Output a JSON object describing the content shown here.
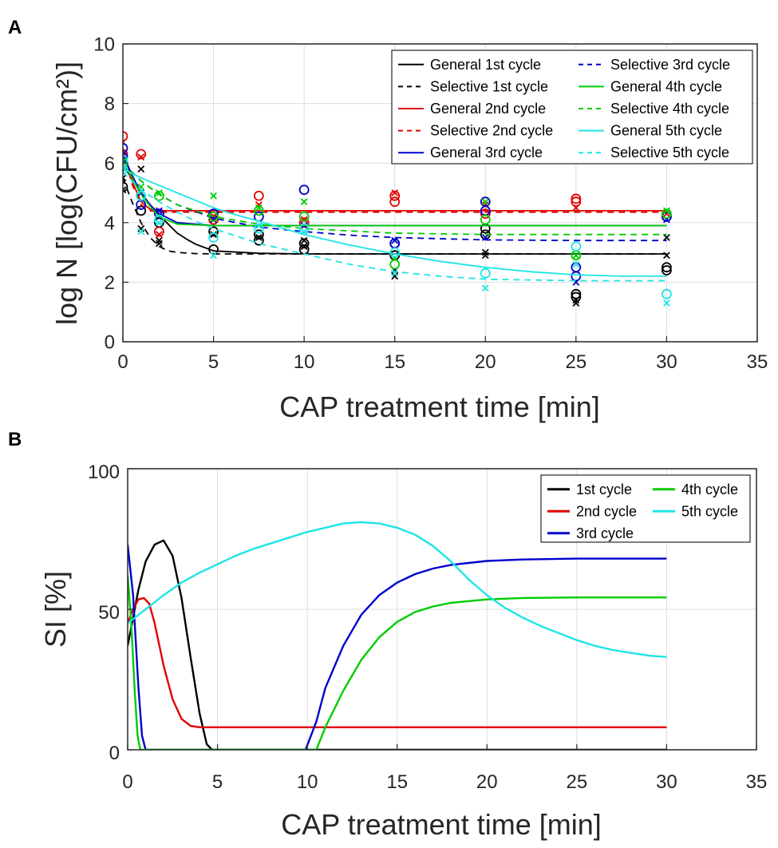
{
  "chart_data": [
    {
      "panel": "A",
      "type": "scatter",
      "xlabel": "CAP treatment time [min]",
      "ylabel": "log N [log(CFU/cm²)]",
      "xlim": [
        0,
        35
      ],
      "ylim": [
        0,
        10
      ],
      "xticks": [
        0,
        5,
        10,
        15,
        20,
        25,
        30,
        35
      ],
      "yticks": [
        0,
        2,
        4,
        6,
        8,
        10
      ],
      "grid": true,
      "legend_position": "top-right",
      "series": [
        {
          "name": "General 1st cycle",
          "color": "#000000",
          "dash": "solid",
          "marker": "o",
          "fit": {
            "x": [
              0,
              0.5,
              1,
              1.5,
              2,
              2.5,
              3,
              3.5,
              4,
              5,
              7.5,
              10,
              15,
              20,
              25,
              30
            ],
            "y": [
              5.9,
              5.5,
              5.0,
              4.6,
              4.25,
              3.95,
              3.65,
              3.45,
              3.28,
              3.05,
              2.97,
              2.95,
              2.95,
              2.95,
              2.95,
              2.95
            ]
          },
          "points": {
            "x": [
              0,
              0,
              1,
              2,
              5,
              5,
              7.5,
              7.5,
              10,
              10,
              15,
              15,
              20,
              20,
              25,
              25,
              30,
              30
            ],
            "y": [
              5.2,
              5.9,
              4.4,
              4.0,
              3.7,
              3.1,
              3.6,
              3.4,
              3.3,
              3.1,
              3.3,
              2.9,
              3.8,
              3.6,
              1.6,
              1.5,
              2.5,
              2.4
            ]
          }
        },
        {
          "name": "Selective 1st cycle",
          "color": "#000000",
          "dash": "dashed",
          "marker": "x",
          "fit": {
            "x": [
              0,
              0.5,
              1,
              1.5,
              2,
              2.5,
              3,
              4,
              5,
              7.5,
              10,
              15,
              20,
              25,
              30
            ],
            "y": [
              5.5,
              4.7,
              4.0,
              3.5,
              3.2,
              3.05,
              3.0,
              2.96,
              2.95,
              2.95,
              2.95,
              2.95,
              2.95,
              2.95,
              2.95
            ]
          },
          "points": {
            "x": [
              0,
              0,
              1,
              1,
              2,
              2,
              5,
              7.5,
              10,
              10,
              15,
              15,
              20,
              20,
              25,
              25,
              30,
              30
            ],
            "y": [
              5.1,
              5.5,
              5.8,
              3.8,
              3.4,
              3.3,
              3.6,
              3.5,
              3.4,
              3.2,
              2.4,
              2.2,
              3.0,
              2.9,
              1.4,
              1.3,
              2.9,
              3.5
            ]
          }
        },
        {
          "name": "General 2nd cycle",
          "color": "#e00000",
          "dash": "solid",
          "marker": "o",
          "fit": {
            "x": [
              0,
              0.5,
              1,
              1.5,
              2,
              3,
              5,
              10,
              15,
              20,
              25,
              30
            ],
            "y": [
              6.5,
              5.4,
              4.7,
              4.45,
              4.4,
              4.4,
              4.4,
              4.4,
              4.4,
              4.4,
              4.4,
              4.4
            ]
          },
          "points": {
            "x": [
              0,
              0,
              1,
              2,
              5,
              7.5,
              10,
              15,
              15,
              20,
              25,
              25,
              30
            ],
            "y": [
              6.9,
              6.3,
              6.3,
              3.7,
              4.1,
              4.9,
              4.0,
              4.9,
              4.7,
              4.3,
              4.8,
              4.7,
              4.2
            ]
          }
        },
        {
          "name": "Selective 2nd cycle",
          "color": "#e00000",
          "dash": "dashed",
          "marker": "x",
          "fit": {
            "x": [
              0,
              0.5,
              1,
              1.5,
              2,
              3,
              5,
              10,
              15,
              20,
              25,
              30
            ],
            "y": [
              6.4,
              5.3,
              4.6,
              4.4,
              4.35,
              4.35,
              4.35,
              4.35,
              4.35,
              4.35,
              4.35,
              4.35
            ]
          },
          "points": {
            "x": [
              0,
              1,
              2,
              5,
              7.5,
              10,
              15,
              20,
              25,
              30
            ],
            "y": [
              6.7,
              6.2,
              3.6,
              4.2,
              4.6,
              4.1,
              5.0,
              4.6,
              4.5,
              4.3
            ]
          }
        },
        {
          "name": "General 3rd cycle",
          "color": "#0000cc",
          "dash": "solid",
          "marker": "o",
          "fit": {
            "x": [
              0,
              0.5,
              1,
              1.5,
              2,
              3,
              5,
              10,
              15,
              20,
              25,
              30
            ],
            "y": [
              6.3,
              5.6,
              5.0,
              4.6,
              4.3,
              4.0,
              3.9,
              3.9,
              3.9,
              3.9,
              3.9,
              3.9
            ]
          },
          "points": {
            "x": [
              0,
              0,
              1,
              2,
              5,
              7.5,
              10,
              15,
              20,
              20,
              25,
              25,
              30
            ],
            "y": [
              6.5,
              6.2,
              4.6,
              4.3,
              4.3,
              4.2,
              5.1,
              3.3,
              4.7,
              4.4,
              2.5,
              2.2,
              4.2
            ]
          }
        },
        {
          "name": "Selective 3rd cycle",
          "color": "#0000cc",
          "dash": "dashed",
          "marker": "x",
          "fit": {
            "x": [
              0,
              1,
              2,
              3,
              5,
              7.5,
              10,
              12.5,
              15,
              20,
              25,
              30
            ],
            "y": [
              6.0,
              5.4,
              4.95,
              4.6,
              4.15,
              3.85,
              3.7,
              3.58,
              3.5,
              3.42,
              3.4,
              3.4
            ]
          },
          "points": {
            "x": [
              0,
              1,
              2,
              5,
              7.5,
              10,
              15,
              20,
              25,
              30
            ],
            "y": [
              6.1,
              5.0,
              4.4,
              4.1,
              3.9,
              3.9,
              3.4,
              3.5,
              2.0,
              4.1
            ]
          }
        },
        {
          "name": "General 4th cycle",
          "color": "#00cc00",
          "dash": "solid",
          "marker": "o",
          "fit": {
            "x": [
              0,
              0.5,
              1,
              1.5,
              2,
              3,
              5,
              10,
              15,
              20,
              25,
              30
            ],
            "y": [
              6.1,
              5.5,
              4.95,
              4.55,
              4.2,
              3.95,
              3.9,
              3.9,
              3.9,
              3.9,
              3.9,
              3.9
            ]
          },
          "points": {
            "x": [
              0,
              1,
              2,
              5,
              7.5,
              10,
              15,
              20,
              25,
              30
            ],
            "y": [
              6.0,
              4.9,
              4.9,
              4.2,
              4.4,
              4.2,
              2.6,
              4.1,
              2.9,
              4.3
            ]
          }
        },
        {
          "name": "Selective 4th cycle",
          "color": "#00cc00",
          "dash": "dashed",
          "marker": "x",
          "fit": {
            "x": [
              0,
              1,
              2,
              3,
              5,
              7.5,
              10,
              12.5,
              15,
              20,
              25,
              30
            ],
            "y": [
              6.0,
              5.4,
              4.95,
              4.6,
              4.2,
              3.95,
              3.8,
              3.72,
              3.65,
              3.6,
              3.6,
              3.6
            ]
          },
          "points": {
            "x": [
              0,
              1,
              2,
              5,
              7.5,
              10,
              15,
              20,
              25,
              30
            ],
            "y": [
              5.9,
              5.2,
              5.0,
              4.9,
              4.5,
              4.7,
              2.8,
              4.7,
              2.9,
              4.4
            ]
          }
        },
        {
          "name": "General 5th cycle",
          "color": "#1ee5e5",
          "dash": "solid",
          "marker": "o",
          "fit": {
            "x": [
              0,
              1,
              2,
              3,
              4,
              5,
              6,
              7.5,
              10,
              12.5,
              15,
              17.5,
              20,
              22.5,
              25,
              27.5,
              30
            ],
            "y": [
              5.8,
              5.5,
              5.25,
              5.0,
              4.75,
              4.5,
              4.3,
              4.05,
              3.6,
              3.25,
              2.95,
              2.7,
              2.5,
              2.35,
              2.25,
              2.2,
              2.2
            ]
          },
          "points": {
            "x": [
              0,
              0,
              1,
              2,
              5,
              7.5,
              10,
              15,
              20,
              25,
              30
            ],
            "y": [
              6.1,
              5.8,
              4.9,
              4.1,
              3.5,
              3.8,
              3.8,
              3.0,
              2.3,
              3.2,
              1.6
            ]
          }
        },
        {
          "name": "Selective 5th cycle",
          "color": "#1ee5e5",
          "dash": "dashed",
          "marker": "x",
          "fit": {
            "x": [
              0,
              1,
              2,
              3,
              4,
              5,
              7.5,
              10,
              12.5,
              15,
              17.5,
              20,
              25,
              30
            ],
            "y": [
              5.7,
              5.1,
              4.7,
              4.35,
              4.05,
              3.8,
              3.3,
              2.95,
              2.6,
              2.35,
              2.2,
              2.1,
              2.05,
              2.05
            ]
          },
          "points": {
            "x": [
              0,
              1,
              2,
              5,
              7.5,
              10,
              15,
              20,
              25,
              30
            ],
            "y": [
              5.9,
              3.7,
              4.0,
              2.9,
              3.9,
              3.7,
              2.3,
              1.8,
              2.6,
              1.3
            ]
          }
        }
      ]
    },
    {
      "panel": "B",
      "type": "line",
      "xlabel": "CAP treatment time [min]",
      "ylabel": "SI [%]",
      "xlim": [
        0,
        35
      ],
      "ylim": [
        0,
        100
      ],
      "xticks": [
        0,
        5,
        10,
        15,
        20,
        25,
        30,
        35
      ],
      "yticks": [
        0,
        50,
        100
      ],
      "grid": true,
      "legend_position": "top-right",
      "series": [
        {
          "name": "1st cycle",
          "color": "#000000",
          "x": [
            0,
            0.3,
            0.6,
            1,
            1.5,
            2,
            2.5,
            3,
            3.5,
            4,
            4.4,
            4.7,
            5,
            10,
            15,
            20,
            25,
            30
          ],
          "y": [
            37,
            47,
            57,
            67,
            73,
            74.5,
            69,
            54,
            33,
            13,
            2,
            0,
            0,
            0,
            0,
            0,
            0,
            0
          ]
        },
        {
          "name": "2nd cycle",
          "color": "#e00000",
          "x": [
            0,
            0.3,
            0.6,
            0.9,
            1.2,
            1.5,
            2,
            2.5,
            3,
            3.5,
            4,
            5,
            10,
            15,
            20,
            25,
            30
          ],
          "y": [
            45,
            50,
            53.5,
            54,
            52,
            45,
            30,
            18,
            11,
            8.5,
            8,
            8,
            8,
            8,
            8,
            8,
            8
          ]
        },
        {
          "name": "3rd cycle",
          "color": "#0000cc",
          "x": [
            0,
            0.3,
            0.6,
            0.8,
            1,
            5,
            9.5,
            9.9,
            10.5,
            11,
            12,
            13,
            14,
            15,
            16,
            17,
            18,
            20,
            22,
            25,
            28,
            30
          ],
          "y": [
            73,
            55,
            22,
            5,
            0,
            0,
            0,
            0,
            10,
            22,
            37,
            48,
            55,
            59.5,
            62.5,
            64.5,
            65.8,
            67.2,
            67.7,
            68,
            68,
            68
          ]
        },
        {
          "name": "4th cycle",
          "color": "#00cc00",
          "x": [
            0,
            0.2,
            0.4,
            0.55,
            0.7,
            5,
            10,
            10.5,
            11,
            12,
            13,
            14,
            15,
            16,
            17,
            18,
            20,
            22,
            25,
            28,
            30
          ],
          "y": [
            62,
            45,
            20,
            5,
            0,
            0,
            0,
            0,
            8,
            21,
            32,
            40,
            45.5,
            49,
            51,
            52.3,
            53.5,
            54,
            54.2,
            54.2,
            54.2
          ]
        },
        {
          "name": "5th cycle",
          "color": "#1ee5e5",
          "x": [
            0,
            1,
            2,
            3,
            4,
            5,
            6,
            7,
            8,
            9,
            10,
            11,
            12,
            13,
            14,
            15,
            16,
            17,
            18,
            19,
            20,
            21,
            22,
            23,
            24,
            25,
            26,
            27,
            28,
            29,
            30
          ],
          "y": [
            45,
            50,
            55,
            59.5,
            63,
            66,
            69,
            71.5,
            73.5,
            75.5,
            77.5,
            79,
            80.5,
            81,
            80.5,
            79,
            76.5,
            72.5,
            67,
            60.5,
            55,
            50.5,
            47,
            44,
            41.5,
            39,
            37,
            35.5,
            34.5,
            33.5,
            33
          ]
        }
      ]
    }
  ]
}
